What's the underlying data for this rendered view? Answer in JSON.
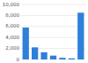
{
  "chart_data": {
    "type": "bar",
    "categories": [
      null,
      null,
      null,
      null,
      null,
      null,
      null
    ],
    "values": [
      5800,
      2200,
      1300,
      700,
      300,
      200,
      8500
    ],
    "color": "#2f80d9",
    "ylim": [
      0,
      10000
    ],
    "yticks": [
      0,
      {
        "value": 2000,
        "label": "2,000"
      },
      {
        "value": 4000,
        "label": "4,000"
      },
      {
        "value": 6000,
        "label": "6,000"
      },
      {
        "value": 8000,
        "label": "8,000"
      },
      {
        "value": 10000,
        "label": "10,000"
      }
    ],
    "grid": true,
    "tick_labels": "y"
  }
}
